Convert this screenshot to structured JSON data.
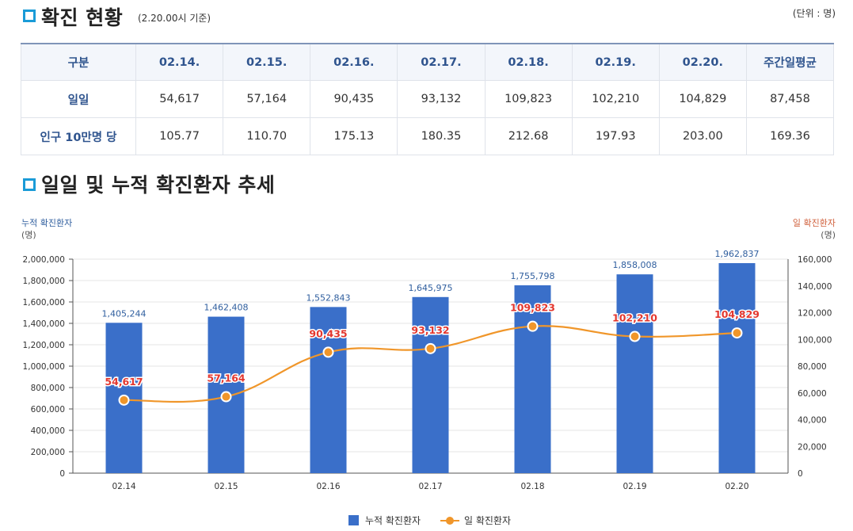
{
  "header": {
    "title": "확진 현황",
    "basis": "(2.20.00시 기준)",
    "unit": "(단위 : 명)"
  },
  "table": {
    "columns": [
      "구분",
      "02.14.",
      "02.15.",
      "02.16.",
      "02.17.",
      "02.18.",
      "02.19.",
      "02.20.",
      "주간일평균"
    ],
    "rows": [
      {
        "label": "일일",
        "values": [
          "54,617",
          "57,164",
          "90,435",
          "93,132",
          "109,823",
          "102,210",
          "104,829",
          "87,458"
        ]
      },
      {
        "label": "인구 10만명 당",
        "values": [
          "105.77",
          "110.70",
          "175.13",
          "180.35",
          "212.68",
          "197.93",
          "203.00",
          "169.36"
        ]
      }
    ]
  },
  "chart_section": {
    "title": "일일 및 누적 확진환자 추세"
  },
  "chart_data": {
    "type": "bar",
    "categories": [
      "02.14",
      "02.15",
      "02.16",
      "02.17",
      "02.18",
      "02.19",
      "02.20"
    ],
    "series": [
      {
        "name": "누적 확진환자",
        "type": "bar",
        "axis": "left",
        "color": "#3a6fc9",
        "values": [
          1405244,
          1462408,
          1552843,
          1645975,
          1755798,
          1858008,
          1962837
        ],
        "labels": [
          "1,405,244",
          "1,462,408",
          "1,552,843",
          "1,645,975",
          "1,755,798",
          "1,858,008",
          "1,962,837"
        ]
      },
      {
        "name": "일 확진환자",
        "type": "line",
        "axis": "right",
        "color": "#f0962a",
        "values": [
          54617,
          57164,
          90435,
          93132,
          109823,
          102210,
          104829
        ],
        "labels": [
          "54,617",
          "57,164",
          "90,435",
          "93,132",
          "109,823",
          "102,210",
          "104,829"
        ]
      }
    ],
    "left_axis": {
      "title": "누적 확진환자",
      "unit": "(명)",
      "ylim": [
        0,
        2000000
      ],
      "ticks": [
        "0",
        "200,000",
        "400,000",
        "600,000",
        "800,000",
        "1,000,000",
        "1,200,000",
        "1,400,000",
        "1,600,000",
        "1,800,000",
        "2,000,000"
      ]
    },
    "right_axis": {
      "title": "일 확진환자",
      "unit": "(명)",
      "ylim": [
        0,
        160000
      ],
      "ticks": [
        "0",
        "20,000",
        "40,000",
        "60,000",
        "80,000",
        "100,000",
        "120,000",
        "140,000",
        "160,000"
      ]
    },
    "grid": true,
    "legend_position": "bottom"
  }
}
